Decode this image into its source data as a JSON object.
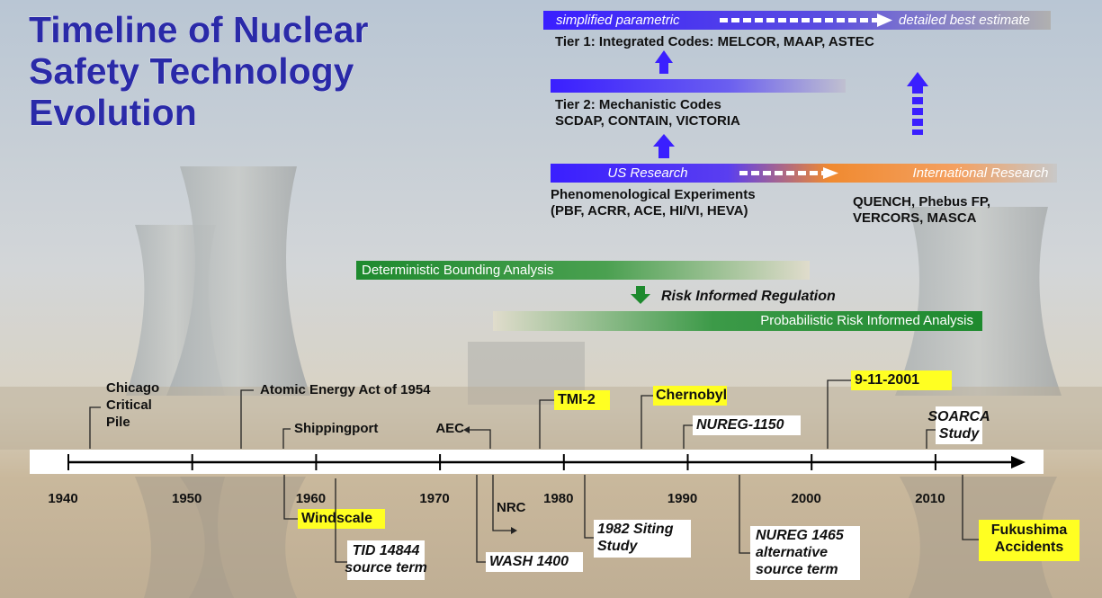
{
  "title": [
    "Timeline of Nuclear",
    "Safety Technology",
    "Evolution"
  ],
  "codes": {
    "tier_bar": {
      "left": "simplified parametric",
      "right": "detailed best estimate"
    },
    "tier1": "Tier 1: Integrated Codes:  MELCOR, MAAP, ASTEC",
    "tier2": [
      "Tier 2: Mechanistic Codes",
      "SCDAP, CONTAIN, VICTORIA"
    ],
    "research_bar": {
      "left": "US Research",
      "right": "International Research"
    },
    "experiments_us": [
      "Phenomenological Experiments",
      "(PBF, ACRR, ACE, HI/VI, HEVA)"
    ],
    "experiments_intl": [
      "QUENCH, Phebus FP,",
      "VERCORS, MASCA"
    ]
  },
  "analysis": {
    "deterministic": "Deterministic Bounding Analysis",
    "regulation": "Risk Informed Regulation",
    "probabilistic": "Probabilistic Risk Informed Analysis"
  },
  "timeline": {
    "years": [
      1940,
      1950,
      1960,
      1970,
      1980,
      1990,
      2000,
      2010
    ]
  },
  "events": [
    {
      "lines": [
        "Chicago",
        "Critical",
        "Pile"
      ]
    },
    {
      "lines": [
        "Atomic Energy Act of 1954"
      ]
    },
    {
      "lines": [
        "Shippingport"
      ]
    },
    {
      "lines": [
        "AEC"
      ]
    },
    {
      "lines": [
        "TMI-2"
      ]
    },
    {
      "lines": [
        "Chernobyl"
      ]
    },
    {
      "lines": [
        "NUREG-1150"
      ]
    },
    {
      "lines": [
        "9-11-2001"
      ]
    },
    {
      "lines": [
        "SOARCA",
        "Study"
      ]
    },
    {
      "lines": [
        "Windscale"
      ]
    },
    {
      "lines": [
        "TID 14844",
        "source term"
      ]
    },
    {
      "lines": [
        "NRC"
      ]
    },
    {
      "lines": [
        "WASH 1400"
      ]
    },
    {
      "lines": [
        "1982 Siting",
        "Study"
      ]
    },
    {
      "lines": [
        "NUREG 1465",
        "alternative",
        "source term"
      ]
    },
    {
      "lines": [
        "Fukushima",
        "Accidents"
      ]
    }
  ]
}
